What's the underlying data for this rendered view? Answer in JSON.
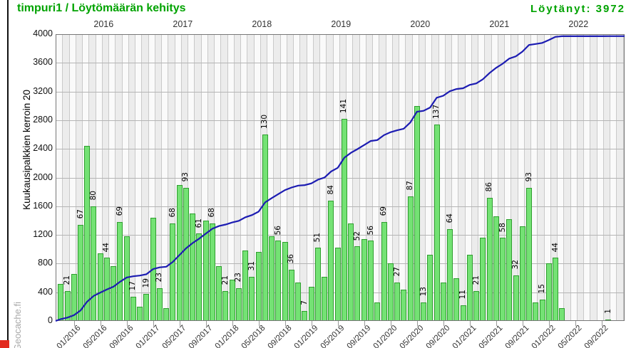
{
  "header": {
    "title": "timpuri1 / Löytömäärän kehitys",
    "found": "Löytänyt: 3972"
  },
  "watermark": {
    "text": "Geocache.fi"
  },
  "colors": {
    "title_green": "#00a300",
    "bar_fill": "#74e274",
    "bar_border": "#2f9f2f",
    "cumulative_line": "#1c1cb2",
    "plot_background": "#ececec",
    "red_corner": "#e22a1e"
  },
  "chart_data": {
    "type": "bar+line",
    "title": "timpuri1 / Löytömäärän kehitys",
    "found_total": 3972,
    "ylabel": "Kuukausipalkkien kerroin 20",
    "bar_value_multiplier": 20,
    "ylim": [
      0,
      4000
    ],
    "ytick_step": 400,
    "y_tick_labels": [
      "0",
      "400",
      "800",
      "1200",
      "1600",
      "2000",
      "2400",
      "2800",
      "3200",
      "3600",
      "4000"
    ],
    "year_labels": [
      "2016",
      "2017",
      "2018",
      "2019",
      "2020",
      "2021",
      "2022"
    ],
    "x_tick_labels": [
      "01/2016",
      "05/2016",
      "09/2016",
      "01/2017",
      "05/2017",
      "09/2017",
      "01/2018",
      "05/2018",
      "09/2018",
      "01/2019",
      "05/2019",
      "09/2019",
      "01/2020",
      "05/2020",
      "09/2020",
      "01/2021",
      "05/2021",
      "09/2021",
      "01/2022",
      "05/2022",
      "09/2022"
    ],
    "months": [
      "2015-11",
      "2015-12",
      "2016-01",
      "2016-02",
      "2016-03",
      "2016-04",
      "2016-05",
      "2016-06",
      "2016-07",
      "2016-08",
      "2016-09",
      "2016-10",
      "2016-11",
      "2016-12",
      "2017-01",
      "2017-02",
      "2017-03",
      "2017-04",
      "2017-05",
      "2017-06",
      "2017-07",
      "2017-08",
      "2017-09",
      "2017-10",
      "2017-11",
      "2017-12",
      "2018-01",
      "2018-02",
      "2018-03",
      "2018-04",
      "2018-05",
      "2018-06",
      "2018-07",
      "2018-08",
      "2018-09",
      "2018-10",
      "2018-11",
      "2018-12",
      "2019-01",
      "2019-02",
      "2019-03",
      "2019-04",
      "2019-05",
      "2019-06",
      "2019-07",
      "2019-08",
      "2019-09",
      "2019-10",
      "2019-11",
      "2019-12",
      "2020-01",
      "2020-02",
      "2020-03",
      "2020-04",
      "2020-05",
      "2020-06",
      "2020-07",
      "2020-08",
      "2020-09",
      "2020-10",
      "2020-11",
      "2020-12",
      "2021-01",
      "2021-02",
      "2021-03",
      "2021-04",
      "2021-05",
      "2021-06",
      "2021-07",
      "2021-08",
      "2021-09",
      "2021-10",
      "2021-11",
      "2021-12",
      "2022-01",
      "2022-02",
      "2022-03",
      "2022-04",
      "2022-05",
      "2022-06",
      "2022-07",
      "2022-08",
      "2022-09",
      "2022-10"
    ],
    "monthly_finds": [
      26,
      21,
      33,
      67,
      122,
      80,
      47,
      44,
      38,
      69,
      59,
      17,
      10,
      19,
      72,
      23,
      9,
      68,
      95,
      93,
      75,
      61,
      70,
      68,
      38,
      21,
      29,
      23,
      49,
      31,
      48,
      130,
      59,
      56,
      55,
      36,
      27,
      7,
      24,
      51,
      31,
      84,
      51,
      141,
      68,
      52,
      57,
      56,
      13,
      69,
      40,
      27,
      22,
      87,
      150,
      13,
      46,
      137,
      27,
      64,
      30,
      11,
      46,
      21,
      58,
      86,
      73,
      58,
      71,
      32,
      66,
      93,
      13,
      15,
      40,
      44,
      9,
      0,
      0,
      0,
      0,
      0,
      0,
      1
    ],
    "bar_labels": [
      null,
      "21",
      null,
      "67",
      null,
      "80",
      null,
      "44",
      null,
      "69",
      null,
      "17",
      null,
      "19",
      null,
      "23",
      null,
      "68",
      null,
      "93",
      null,
      "61",
      null,
      "68",
      null,
      "21",
      null,
      "23",
      null,
      "31",
      null,
      "130",
      null,
      "56",
      null,
      "36",
      null,
      "7",
      null,
      "51",
      null,
      "84",
      null,
      "141",
      null,
      "52",
      null,
      "56",
      null,
      "69",
      null,
      "27",
      null,
      "87",
      null,
      "13",
      null,
      "137",
      null,
      "64",
      null,
      "11",
      null,
      "21",
      null,
      "86",
      null,
      "58",
      null,
      "32",
      null,
      "93",
      null,
      "15",
      null,
      "44",
      null,
      null,
      null,
      null,
      null,
      null,
      null,
      "1"
    ],
    "cumulative_final": 3972,
    "legend_position": "none",
    "grid": true
  }
}
